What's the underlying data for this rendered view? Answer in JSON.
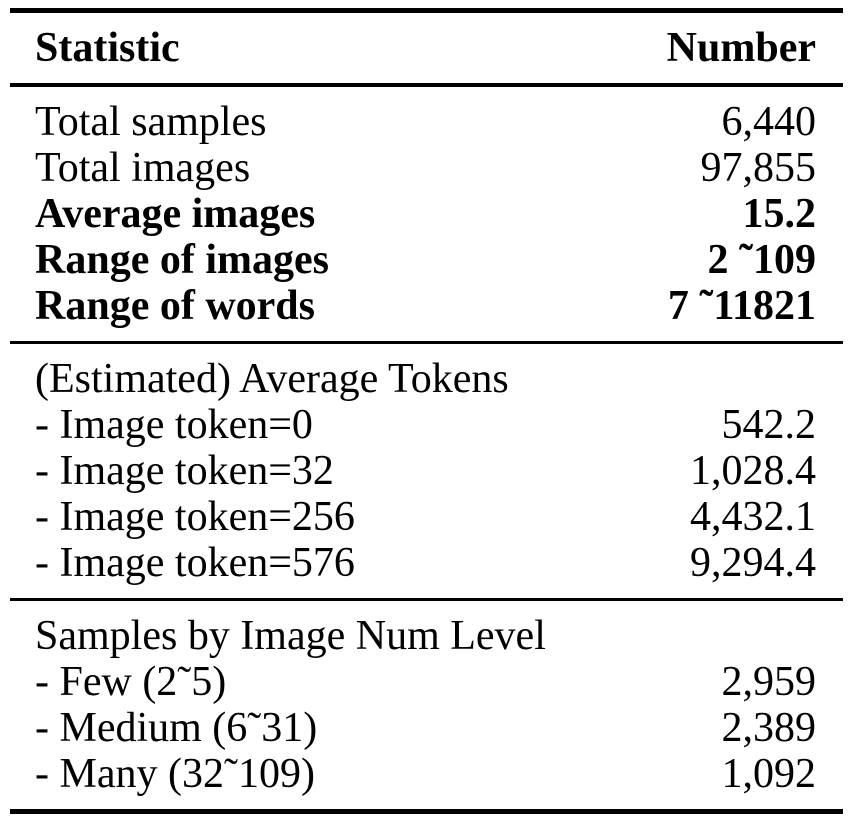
{
  "table": {
    "columns": [
      "Statistic",
      "Number"
    ],
    "sections": [
      {
        "rows": [
          {
            "label": "Total samples",
            "value": "6,440",
            "bold": false
          },
          {
            "label": "Total images",
            "value": "97,855",
            "bold": false
          },
          {
            "label": "Average images",
            "value": "15.2",
            "bold": true
          },
          {
            "label": "Range of images",
            "value": "2 ˜109",
            "bold": true
          },
          {
            "label": "Range of words",
            "value": "7 ˜11821",
            "bold": true
          }
        ]
      },
      {
        "header": "(Estimated) Average Tokens",
        "rows": [
          {
            "label": "- Image token=0",
            "value": "542.2",
            "bold": false
          },
          {
            "label": "- Image token=32",
            "value": "1,028.4",
            "bold": false
          },
          {
            "label": "- Image token=256",
            "value": "4,432.1",
            "bold": false
          },
          {
            "label": "- Image token=576",
            "value": "9,294.4",
            "bold": false
          }
        ]
      },
      {
        "header": "Samples by Image Num Level",
        "rows": [
          {
            "label": "- Few (2˜5)",
            "value": "2,959",
            "bold": false
          },
          {
            "label": "- Medium (6˜31)",
            "value": "2,389",
            "bold": false
          },
          {
            "label": "- Many (32˜109)",
            "value": "1,092",
            "bold": false
          }
        ]
      }
    ],
    "colors": {
      "background": "#ffffff",
      "text": "#000000",
      "rule": "#000000"
    }
  }
}
